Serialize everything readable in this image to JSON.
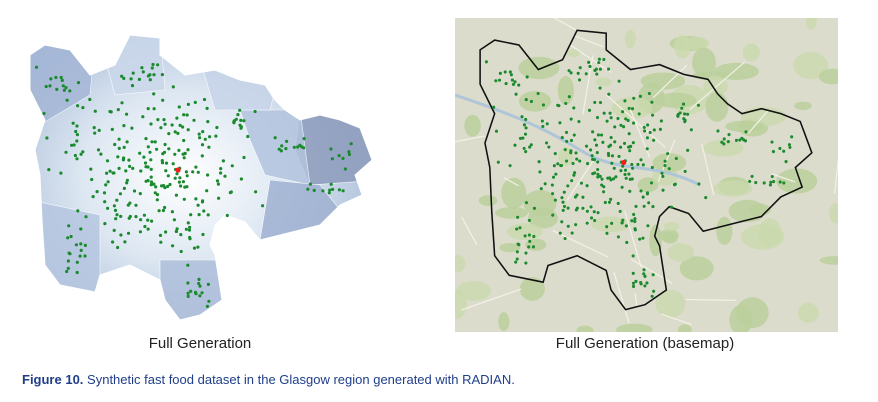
{
  "panels": [
    {
      "caption": "Full Generation"
    },
    {
      "caption": "Full Generation (basemap)"
    }
  ],
  "figure": {
    "label": "Figure 10.",
    "caption": "Synthetic fast food dataset in the Glasgow region generated with RADIAN."
  }
}
